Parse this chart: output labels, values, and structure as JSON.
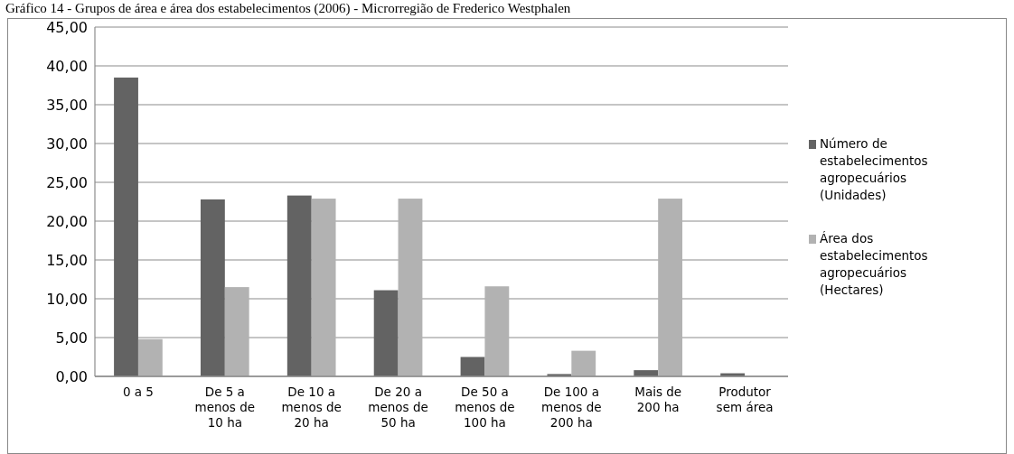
{
  "chart_data": {
    "type": "bar",
    "title": "Gráfico 14 - Grupos de área e área dos estabelecimentos (2006) - Microrregião de Frederico Westphalen",
    "categories": [
      "0 a 5",
      "De 5 a menos de 10 ha",
      "De 10 a menos de 20 ha",
      "De 20 a menos de 50 ha",
      "De 50 a menos de 100 ha",
      "De 100 a menos de 200 ha",
      "Mais de 200 ha",
      "Produtor sem área"
    ],
    "series": [
      {
        "name": "Número de estabelecimentos agropecuários (Unidades)",
        "color": "#636363",
        "values": [
          38.5,
          22.8,
          23.3,
          11.1,
          2.5,
          0.3,
          0.8,
          0.4
        ]
      },
      {
        "name": "Área dos estabelecimentos agropecuários (Hectares)",
        "color": "#b2b2b2",
        "values": [
          4.8,
          11.5,
          22.9,
          22.9,
          11.6,
          3.3,
          22.9,
          0
        ]
      }
    ],
    "ylim": [
      0,
      45
    ],
    "yticks": [
      {
        "value": 0,
        "label": "0,00"
      },
      {
        "value": 5,
        "label": "5,00"
      },
      {
        "value": 10,
        "label": "10,00"
      },
      {
        "value": 15,
        "label": "15,00"
      },
      {
        "value": 20,
        "label": "20,00"
      },
      {
        "value": 25,
        "label": "25,00"
      },
      {
        "value": 30,
        "label": "30,00"
      },
      {
        "value": 35,
        "label": "35,00"
      },
      {
        "value": 40,
        "label": "40,00"
      },
      {
        "value": 45,
        "label": "45,00"
      }
    ],
    "grid": "y",
    "legend": "right"
  }
}
